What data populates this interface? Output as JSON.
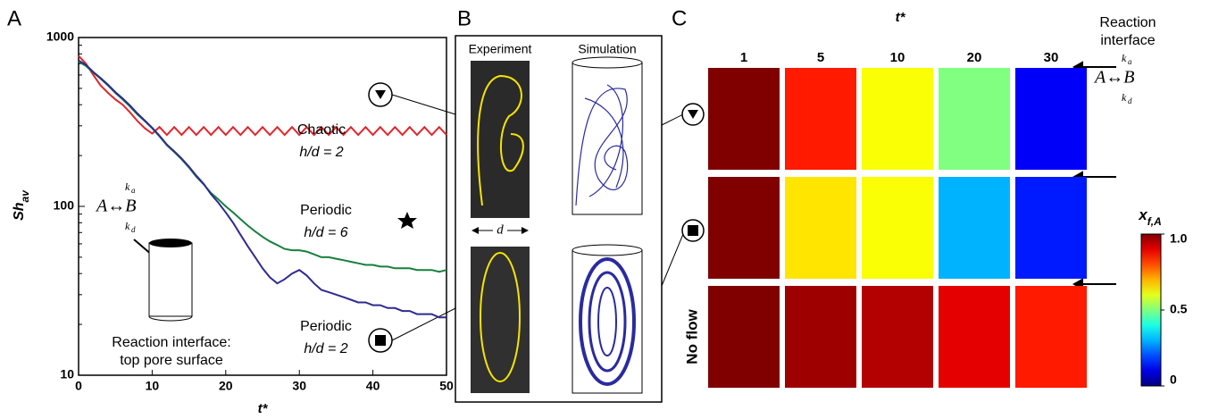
{
  "panel_labels": [
    "A",
    "B",
    "C"
  ],
  "chart_data": [
    {
      "type": "line",
      "x_label": "t*",
      "y_label": "Sh",
      "y_label_sub": "av",
      "log_y": true,
      "xlim": [
        0,
        50
      ],
      "xticks": [
        0,
        10,
        20,
        30,
        40,
        50
      ],
      "ylim": [
        10,
        1000
      ],
      "yticks": [
        10,
        100,
        1000
      ],
      "x": [
        0,
        1,
        2,
        3,
        4,
        5,
        6,
        7,
        8,
        9,
        10,
        11,
        12,
        13,
        14,
        15,
        16,
        17,
        18,
        19,
        20,
        21,
        22,
        23,
        24,
        25,
        26,
        27,
        28,
        29,
        30,
        31,
        32,
        33,
        34,
        35,
        36,
        37,
        38,
        39,
        40,
        41,
        42,
        43,
        44,
        45,
        46,
        47,
        48,
        49,
        50
      ],
      "series": [
        {
          "name": "Chaotic",
          "condition": "h/d = 2",
          "color": "#e3242b",
          "values": [
            780,
            700,
            600,
            520,
            470,
            430,
            400,
            360,
            320,
            290,
            270,
            295,
            265,
            295,
            265,
            295,
            265,
            295,
            265,
            295,
            265,
            295,
            265,
            295,
            265,
            295,
            265,
            295,
            265,
            295,
            265,
            295,
            265,
            295,
            265,
            295,
            265,
            295,
            265,
            295,
            265,
            295,
            265,
            295,
            265,
            295,
            265,
            295,
            265,
            295,
            265
          ]
        },
        {
          "name": "Periodic",
          "condition": "h/d = 6",
          "color": "#17803d",
          "values": [
            720,
            680,
            620,
            570,
            520,
            470,
            430,
            390,
            350,
            320,
            290,
            260,
            230,
            210,
            190,
            170,
            150,
            135,
            120,
            110,
            100,
            92,
            84,
            77,
            71,
            66,
            62,
            59,
            56,
            55,
            55,
            54,
            52,
            50,
            50,
            49,
            48,
            47,
            46,
            45,
            45,
            44,
            44,
            43,
            43,
            43,
            42,
            42,
            42,
            41,
            42
          ]
        },
        {
          "name": "Periodic",
          "condition": "h/d = 2",
          "color": "#2e2c8f",
          "values": [
            730,
            690,
            625,
            575,
            525,
            475,
            435,
            395,
            355,
            322,
            292,
            262,
            232,
            212,
            192,
            172,
            152,
            136,
            118,
            105,
            92,
            80,
            68,
            58,
            50,
            43,
            38,
            35,
            37,
            40,
            42,
            39,
            35,
            32,
            31,
            30,
            29,
            28,
            27,
            27,
            26,
            26,
            25,
            25,
            24,
            24,
            23,
            23,
            23,
            22,
            22
          ]
        }
      ],
      "reaction": {
        "equation": "A↔B",
        "rate": "k",
        "forward": "a",
        "backward": "d"
      },
      "annotations": [
        "Reaction interface:",
        "top pore surface"
      ]
    },
    {
      "type": "heatmap",
      "title": "t*",
      "columns": [
        "1",
        "5",
        "10",
        "20",
        "30"
      ],
      "rows": [
        null,
        null,
        "No flow"
      ],
      "values": [
        [
          1.0,
          0.85,
          0.62,
          0.5,
          0.12
        ],
        [
          1.0,
          0.65,
          0.62,
          0.3,
          0.15
        ],
        [
          1.0,
          0.97,
          0.95,
          0.9,
          0.85
        ]
      ],
      "colorbar_label": "x",
      "colorbar_label_sub": "f,A",
      "clim": [
        0,
        1
      ],
      "cticks": [
        0,
        0.5,
        {
          "value": 1,
          "label": "1.0"
        }
      ],
      "annotations": [
        "Reaction",
        "interface"
      ],
      "reaction": {
        "equation": "A↔B",
        "rate": "k",
        "forward": "a",
        "backward": "d"
      }
    }
  ],
  "panel_b": {
    "columns": [
      "Experiment",
      "Simulation"
    ],
    "scale_label": "d"
  }
}
